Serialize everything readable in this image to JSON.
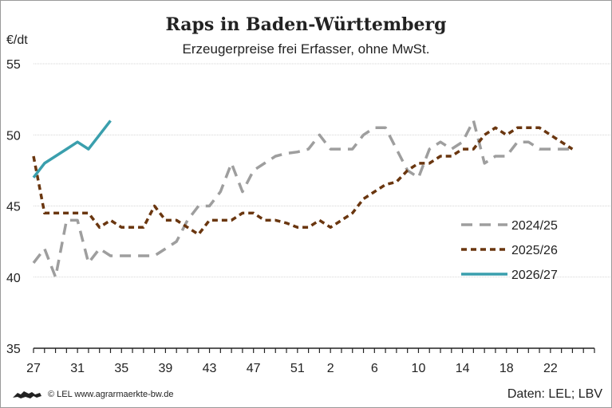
{
  "chart_data": {
    "type": "line",
    "title": "Raps in Baden-Württemberg",
    "subtitle": "Erzeugerpreise frei Erfasser, ohne MwSt.",
    "ylabel": "€/dt",
    "ylim": [
      35,
      55
    ],
    "yticks": [
      35,
      40,
      45,
      50,
      55
    ],
    "x_positions": [
      27,
      28,
      29,
      30,
      31,
      32,
      33,
      34,
      35,
      36,
      37,
      38,
      39,
      40,
      41,
      42,
      43,
      44,
      45,
      46,
      47,
      48,
      49,
      50,
      51,
      52,
      1,
      2,
      3,
      4,
      5,
      6,
      7,
      8,
      9,
      10,
      11,
      12,
      13,
      14,
      15,
      16,
      17,
      18,
      19,
      20,
      21,
      22,
      23,
      24,
      25,
      26
    ],
    "xtick_labels": [
      "27",
      "31",
      "35",
      "39",
      "43",
      "47",
      "51",
      "2",
      "6",
      "10",
      "14",
      "18",
      "22"
    ],
    "xtick_indices": [
      0,
      4,
      8,
      12,
      16,
      20,
      24,
      27,
      31,
      35,
      39,
      43,
      47
    ],
    "grid": "horizontal",
    "legend_position": "right",
    "series": [
      {
        "name": "2024/25",
        "color": "#9e9e9e",
        "style": "dashed-long",
        "values": [
          41,
          42,
          40,
          44,
          44,
          41,
          42,
          41.5,
          41.5,
          41.5,
          41.5,
          41.5,
          42,
          42.5,
          44,
          45,
          45,
          46,
          48,
          46,
          47.5,
          48,
          48.5,
          48.7,
          48.8,
          49,
          50,
          49,
          49,
          49,
          50,
          50.5,
          50.5,
          49,
          47.5,
          47,
          49,
          49.5,
          49,
          49.5,
          51,
          48,
          48.5,
          48.5,
          49.5,
          49.5,
          49,
          49,
          49,
          49
        ]
      },
      {
        "name": "2025/26",
        "color": "#6a360f",
        "style": "dashed-short",
        "values": [
          48.5,
          44.5,
          44.5,
          44.5,
          44.5,
          44.5,
          43.5,
          44,
          43.5,
          43.5,
          43.5,
          45,
          44,
          44,
          43.5,
          43,
          44,
          44,
          44,
          44.5,
          44.5,
          44,
          44,
          43.8,
          43.5,
          43.5,
          44,
          43.5,
          44,
          44.5,
          45.5,
          46,
          46.5,
          46.7,
          47.5,
          48,
          48,
          48.5,
          48.5,
          49,
          49,
          50,
          50.5,
          50,
          50.5,
          50.5,
          50.5,
          50,
          49.5,
          49
        ]
      },
      {
        "name": "2026/27",
        "color": "#3a9fad",
        "style": "solid",
        "values": [
          47,
          48,
          48.5,
          49,
          49.5,
          49,
          50,
          51
        ]
      }
    ]
  },
  "footer": {
    "copyright": "© LEL www.agrarmaerkte-bw.de",
    "source": "Daten: LEL; LBV"
  }
}
